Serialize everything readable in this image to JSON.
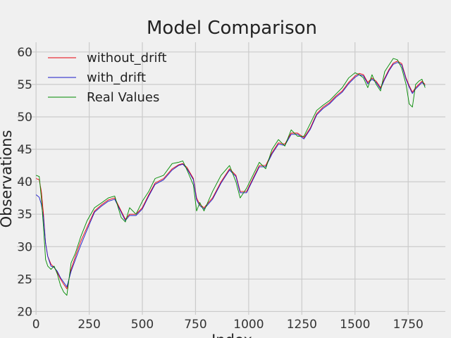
{
  "chart_data": {
    "type": "line",
    "title": "Model Comparison",
    "xlabel": "Index",
    "ylabel": "Observations",
    "xlim": [
      -90,
      1925
    ],
    "ylim": [
      19.5,
      61.5
    ],
    "xticks": [
      0,
      250,
      500,
      750,
      1000,
      1250,
      1500,
      1750
    ],
    "yticks": [
      20,
      25,
      30,
      35,
      40,
      45,
      50,
      55,
      60
    ],
    "grid": true,
    "legend_position": "top-left",
    "background": "#f0f0f0",
    "grid_color": "#cbcbcb",
    "x": [
      0,
      15,
      25,
      35,
      45,
      55,
      70,
      85,
      100,
      115,
      130,
      145,
      165,
      185,
      210,
      240,
      275,
      310,
      340,
      370,
      400,
      420,
      440,
      470,
      500,
      530,
      560,
      600,
      640,
      670,
      690,
      710,
      740,
      755,
      770,
      790,
      830,
      870,
      910,
      940,
      960,
      990,
      1020,
      1050,
      1080,
      1110,
      1140,
      1170,
      1200,
      1230,
      1260,
      1290,
      1320,
      1350,
      1380,
      1410,
      1440,
      1470,
      1500,
      1520,
      1540,
      1560,
      1580,
      1600,
      1620,
      1640,
      1660,
      1680,
      1700,
      1720,
      1740,
      1755,
      1770,
      1785,
      1800,
      1815,
      1830
    ],
    "series": [
      {
        "name": "without_drift",
        "color": "#e8000b",
        "values": [
          40.5,
          40.3,
          38.5,
          35.0,
          30.5,
          28.5,
          27.3,
          26.8,
          26.0,
          25.0,
          24.2,
          23.5,
          26.5,
          28.5,
          30.8,
          33.0,
          35.5,
          36.5,
          37.2,
          37.5,
          35.5,
          34.2,
          35.0,
          35.0,
          36.0,
          38.0,
          39.8,
          40.5,
          42.0,
          42.6,
          42.8,
          42.2,
          40.5,
          37.5,
          36.5,
          36.0,
          37.5,
          40.0,
          42.0,
          41.0,
          38.5,
          38.5,
          40.5,
          42.5,
          42.5,
          44.5,
          46.0,
          45.8,
          47.5,
          47.5,
          46.8,
          48.3,
          50.5,
          51.5,
          52.2,
          53.2,
          54.0,
          55.3,
          56.3,
          56.7,
          56.5,
          55.3,
          56.0,
          55.5,
          54.5,
          56.0,
          57.3,
          58.3,
          58.6,
          58.2,
          56.0,
          54.8,
          53.8,
          54.5,
          55.0,
          55.5,
          55.0
        ]
      },
      {
        "name": "with_drift",
        "color": "#1a1ac9",
        "values": [
          38.0,
          37.6,
          36.5,
          34.5,
          30.5,
          28.5,
          27.0,
          26.8,
          26.2,
          25.2,
          24.5,
          23.8,
          26.2,
          28.0,
          30.2,
          32.6,
          35.3,
          36.3,
          37.0,
          37.3,
          35.3,
          34.0,
          34.8,
          34.8,
          35.8,
          37.8,
          39.6,
          40.3,
          41.8,
          42.5,
          42.7,
          42.0,
          40.3,
          37.2,
          36.3,
          35.8,
          37.3,
          39.8,
          41.8,
          40.8,
          38.3,
          38.3,
          40.3,
          42.3,
          42.3,
          44.3,
          45.8,
          45.6,
          47.3,
          47.3,
          46.6,
          48.1,
          50.3,
          51.3,
          52.0,
          53.0,
          53.8,
          55.1,
          56.1,
          56.5,
          56.3,
          55.1,
          55.8,
          55.3,
          54.3,
          55.8,
          57.1,
          58.1,
          58.4,
          58.0,
          55.8,
          54.6,
          53.6,
          54.3,
          54.8,
          55.3,
          54.8
        ]
      },
      {
        "name": "Real Values",
        "color": "#008a00",
        "values": [
          41.0,
          40.8,
          37.5,
          33.0,
          28.0,
          27.0,
          26.5,
          27.0,
          25.8,
          24.0,
          23.0,
          22.5,
          27.5,
          29.0,
          31.5,
          34.0,
          36.0,
          36.8,
          37.5,
          37.8,
          34.5,
          33.8,
          36.0,
          35.0,
          37.0,
          38.5,
          40.5,
          41.0,
          42.8,
          43.0,
          43.2,
          41.8,
          39.5,
          35.5,
          36.8,
          35.5,
          38.5,
          41.0,
          42.5,
          40.0,
          37.5,
          39.0,
          41.0,
          43.0,
          42.0,
          45.0,
          46.5,
          45.5,
          48.0,
          47.0,
          47.0,
          49.0,
          51.0,
          51.8,
          52.5,
          53.5,
          54.5,
          56.0,
          56.8,
          56.5,
          56.0,
          54.5,
          56.5,
          55.0,
          54.0,
          57.0,
          58.0,
          59.0,
          58.8,
          57.5,
          55.0,
          52.0,
          51.5,
          55.0,
          55.5,
          55.8,
          54.5
        ]
      }
    ]
  }
}
